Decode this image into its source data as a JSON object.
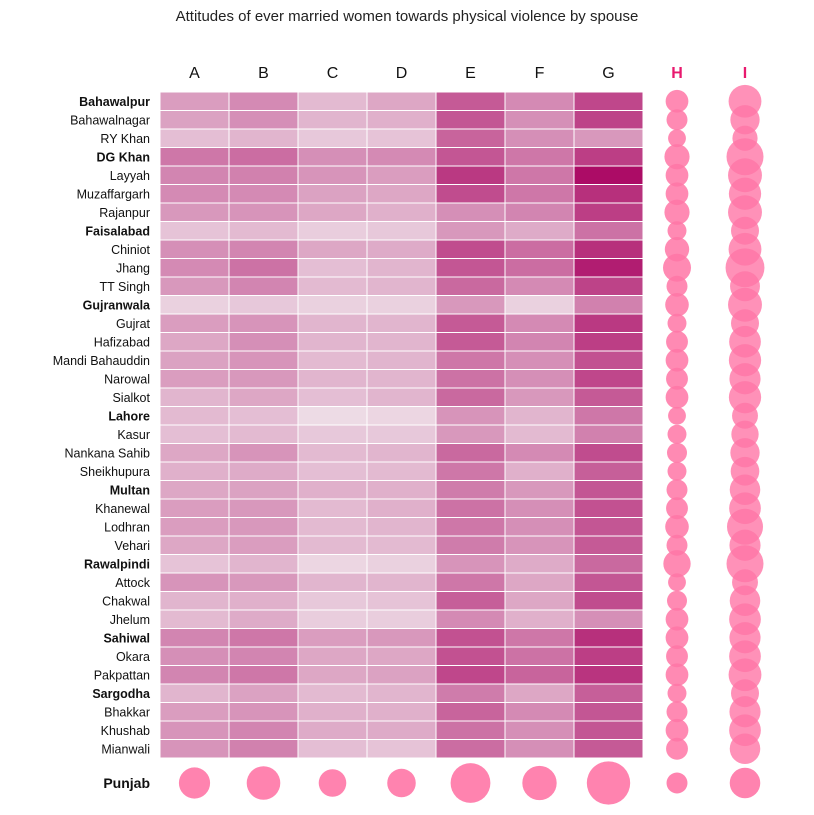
{
  "chart_data": {
    "type": "heatmap",
    "title": "Attitudes of ever married women towards physical violence by spouse",
    "columns": [
      "A",
      "B",
      "C",
      "D",
      "E",
      "F",
      "G"
    ],
    "bubble_columns": [
      "H",
      "I"
    ],
    "rows": [
      {
        "name": "Bahawalpur",
        "bold": true,
        "values": [
          34,
          42,
          22,
          30,
          62,
          42,
          70
        ],
        "H": 22,
        "I": 52
      },
      {
        "name": "Bahawalnagar",
        "bold": false,
        "values": [
          32,
          40,
          24,
          26,
          64,
          40,
          72
        ],
        "H": 18,
        "I": 40
      },
      {
        "name": "RY Khan",
        "bold": false,
        "values": [
          20,
          24,
          16,
          18,
          58,
          40,
          36
        ],
        "H": 12,
        "I": 28
      },
      {
        "name": "DG Khan",
        "bold": true,
        "values": [
          50,
          54,
          40,
          42,
          64,
          50,
          74
        ],
        "H": 28,
        "I": 68
      },
      {
        "name": "Layyah",
        "bold": false,
        "values": [
          44,
          46,
          38,
          34,
          76,
          50,
          95
        ],
        "H": 22,
        "I": 56
      },
      {
        "name": "Muzaffargarh",
        "bold": false,
        "values": [
          42,
          42,
          32,
          30,
          68,
          50,
          80
        ],
        "H": 22,
        "I": 50
      },
      {
        "name": "Rajanpur",
        "bold": false,
        "values": [
          36,
          38,
          30,
          26,
          40,
          44,
          74
        ],
        "H": 28,
        "I": 56
      },
      {
        "name": "Faisalabad",
        "bold": true,
        "values": [
          18,
          22,
          14,
          16,
          36,
          28,
          52
        ],
        "H": 14,
        "I": 36
      },
      {
        "name": "Chiniot",
        "bold": false,
        "values": [
          40,
          44,
          30,
          28,
          68,
          54,
          80
        ],
        "H": 26,
        "I": 52
      },
      {
        "name": "Jhang",
        "bold": false,
        "values": [
          42,
          52,
          20,
          24,
          64,
          54,
          88
        ],
        "H": 36,
        "I": 76
      },
      {
        "name": "TT Singh",
        "bold": false,
        "values": [
          36,
          44,
          22,
          24,
          56,
          42,
          72
        ],
        "H": 18,
        "I": 42
      },
      {
        "name": "Gujranwala",
        "bold": true,
        "values": [
          12,
          16,
          12,
          12,
          36,
          12,
          46
        ],
        "H": 24,
        "I": 56
      },
      {
        "name": "Gujrat",
        "bold": false,
        "values": [
          34,
          38,
          24,
          24,
          62,
          42,
          76
        ],
        "H": 14,
        "I": 36
      },
      {
        "name": "Hafizabad",
        "bold": false,
        "values": [
          30,
          40,
          24,
          24,
          62,
          44,
          74
        ],
        "H": 20,
        "I": 48
      },
      {
        "name": "Mandi Bahauddin",
        "bold": false,
        "values": [
          32,
          38,
          22,
          24,
          50,
          40,
          66
        ],
        "H": 22,
        "I": 50
      },
      {
        "name": "Narowal",
        "bold": false,
        "values": [
          34,
          36,
          24,
          24,
          52,
          40,
          70
        ],
        "H": 20,
        "I": 46
      },
      {
        "name": "Sialkot",
        "bold": false,
        "values": [
          24,
          30,
          20,
          24,
          56,
          36,
          62
        ],
        "H": 22,
        "I": 50
      },
      {
        "name": "Lahore",
        "bold": true,
        "values": [
          22,
          20,
          8,
          10,
          38,
          24,
          50
        ],
        "H": 12,
        "I": 30
      },
      {
        "name": "Kasur",
        "bold": false,
        "values": [
          20,
          22,
          16,
          16,
          36,
          22,
          46
        ],
        "H": 14,
        "I": 34
      },
      {
        "name": "Nankana Sahib",
        "bold": false,
        "values": [
          30,
          38,
          22,
          24,
          56,
          42,
          68
        ],
        "H": 16,
        "I": 40
      },
      {
        "name": "Sheikhupura",
        "bold": false,
        "values": [
          26,
          28,
          20,
          22,
          50,
          26,
          60
        ],
        "H": 14,
        "I": 38
      },
      {
        "name": "Multan",
        "bold": true,
        "values": [
          30,
          32,
          26,
          26,
          48,
          36,
          64
        ],
        "H": 18,
        "I": 44
      },
      {
        "name": "Khanewal",
        "bold": false,
        "values": [
          34,
          36,
          22,
          26,
          52,
          40,
          66
        ],
        "H": 20,
        "I": 48
      },
      {
        "name": "Lodhran",
        "bold": false,
        "values": [
          34,
          36,
          22,
          24,
          50,
          40,
          64
        ],
        "H": 24,
        "I": 64
      },
      {
        "name": "Vehari",
        "bold": false,
        "values": [
          30,
          34,
          22,
          22,
          48,
          38,
          62
        ],
        "H": 18,
        "I": 46
      },
      {
        "name": "Rawalpindi",
        "bold": true,
        "values": [
          18,
          24,
          10,
          12,
          38,
          28,
          56
        ],
        "H": 34,
        "I": 68
      },
      {
        "name": "Attock",
        "bold": false,
        "values": [
          38,
          36,
          24,
          24,
          50,
          30,
          64
        ],
        "H": 12,
        "I": 30
      },
      {
        "name": "Chakwal",
        "bold": false,
        "values": [
          24,
          26,
          16,
          18,
          60,
          30,
          68
        ],
        "H": 16,
        "I": 44
      },
      {
        "name": "Jhelum",
        "bold": false,
        "values": [
          22,
          28,
          14,
          14,
          42,
          26,
          40
        ],
        "H": 22,
        "I": 48
      },
      {
        "name": "Sahiwal",
        "bold": true,
        "values": [
          44,
          50,
          34,
          36,
          66,
          50,
          80
        ],
        "H": 22,
        "I": 46
      },
      {
        "name": "Okara",
        "bold": false,
        "values": [
          40,
          44,
          30,
          30,
          66,
          52,
          74
        ],
        "H": 20,
        "I": 48
      },
      {
        "name": "Pakpattan",
        "bold": false,
        "values": [
          44,
          50,
          30,
          32,
          70,
          58,
          78
        ],
        "H": 22,
        "I": 52
      },
      {
        "name": "Sargodha",
        "bold": true,
        "values": [
          24,
          32,
          22,
          24,
          48,
          30,
          60
        ],
        "H": 14,
        "I": 36
      },
      {
        "name": "Bhakkar",
        "bold": false,
        "values": [
          34,
          38,
          26,
          26,
          58,
          42,
          64
        ],
        "H": 18,
        "I": 46
      },
      {
        "name": "Khushab",
        "bold": false,
        "values": [
          38,
          44,
          28,
          28,
          52,
          40,
          64
        ],
        "H": 22,
        "I": 48
      },
      {
        "name": "Mianwali",
        "bold": false,
        "values": [
          38,
          46,
          20,
          18,
          54,
          40,
          62
        ],
        "H": 20,
        "I": 44
      }
    ],
    "summary_row": {
      "name": "Punjab",
      "values": [
        30,
        36,
        22,
        24,
        54,
        38,
        66
      ],
      "H": 18,
      "I": 44
    },
    "color_scale": {
      "low": "#f3eef1",
      "high": "#a8005f"
    },
    "bubble_color": "#ff75a6",
    "header_color_bubbles": "#e8196e",
    "value_range": [
      0,
      100
    ]
  }
}
